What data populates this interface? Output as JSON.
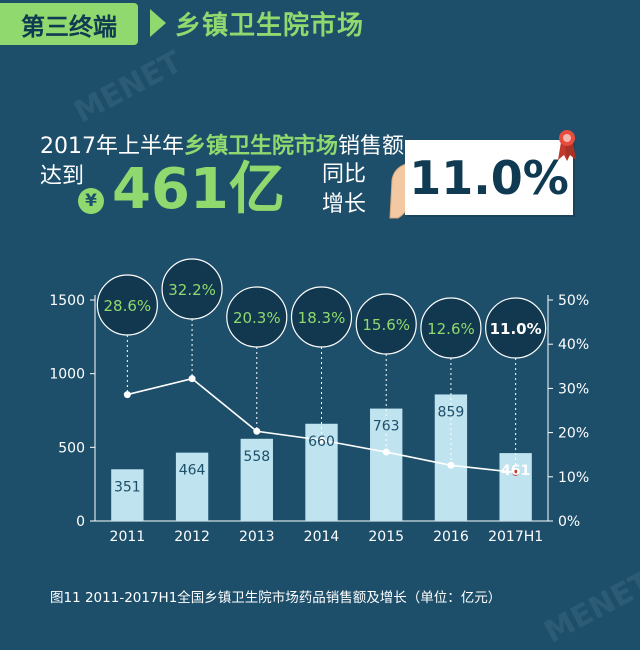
{
  "header": {
    "section_label": "第三终端",
    "title": "乡镇卫生院市场"
  },
  "headline": {
    "prefix": "2017年上半年",
    "highlight": "乡镇卫生院市场",
    "suffix": "销售额",
    "reach": "达到",
    "currency_symbol": "¥",
    "amount": "461亿",
    "yoy_label": "同比增长",
    "growth": "11.0%"
  },
  "colors": {
    "background": "#1d4f6b",
    "accent_green": "#8fd96e",
    "bar": "#bfe3ef",
    "line": "#ffffff",
    "circle_fill": "#11384e",
    "last_point": "#c0392b"
  },
  "watermark": "MENET",
  "chart_data": {
    "type": "bar",
    "categories": [
      "2011",
      "2012",
      "2013",
      "2014",
      "2015",
      "2016",
      "2017H1"
    ],
    "series": [
      {
        "name": "销售额",
        "values": [
          351,
          464,
          558,
          660,
          763,
          859,
          461
        ]
      },
      {
        "name": "增长率",
        "values": [
          28.6,
          32.2,
          20.3,
          18.3,
          15.6,
          12.6,
          11.0
        ],
        "type": "line",
        "axis": "right"
      }
    ],
    "bar_labels": [
      "351",
      "464",
      "558",
      "660",
      "763",
      "859",
      "461"
    ],
    "growth_labels": [
      "28.6%",
      "32.2%",
      "20.3%",
      "18.3%",
      "15.6%",
      "12.6%",
      "11.0%"
    ],
    "highlight_index": 6,
    "y_left": {
      "ylim": [
        0,
        1500
      ],
      "ticks": [
        0,
        500,
        1000,
        1500
      ]
    },
    "y_right": {
      "ylim": [
        0,
        50
      ],
      "ticks": [
        0,
        10,
        20,
        30,
        40,
        50
      ],
      "tick_labels": [
        "0%",
        "10%",
        "20%",
        "30%",
        "40%",
        "50%"
      ]
    },
    "title": "图11  2011-2017H1全国乡镇卫生院市场药品销售额及增长（单位：亿元）",
    "xlabel": "",
    "ylabel": "",
    "grid": false
  }
}
